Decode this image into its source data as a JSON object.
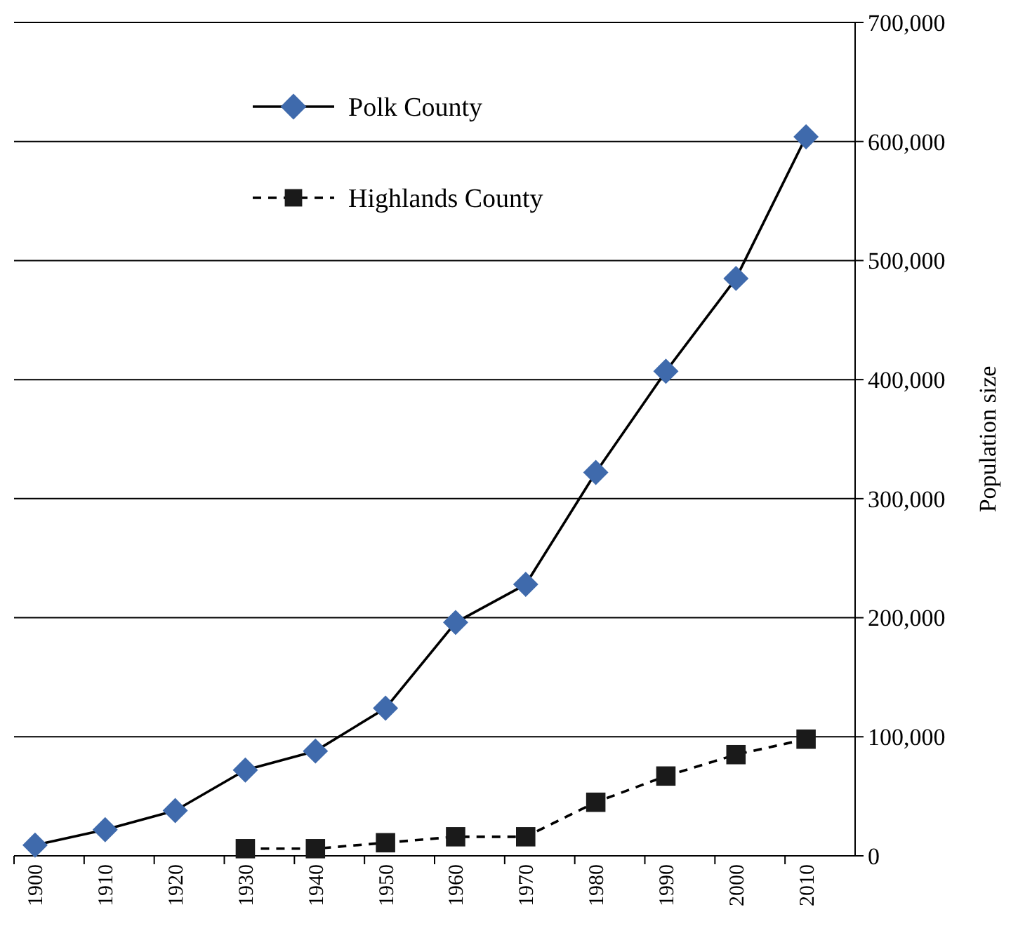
{
  "chart_data": {
    "type": "line",
    "ylabel": "Population size",
    "categories": [
      "1900",
      "1910",
      "1920",
      "1930",
      "1940",
      "1950",
      "1960",
      "1970",
      "1980",
      "1990",
      "2000",
      "2010"
    ],
    "series": [
      {
        "name": "Polk County",
        "color": "#3f6aac",
        "marker": "diamond",
        "line_style": "solid",
        "values": [
          9000,
          22000,
          38000,
          72000,
          88000,
          124000,
          196000,
          228000,
          322000,
          407000,
          485000,
          604000
        ]
      },
      {
        "name": "Highlands County",
        "color": "#1a1a1a",
        "marker": "square",
        "line_style": "dashed",
        "values": [
          null,
          null,
          null,
          6000,
          6000,
          11000,
          16000,
          16000,
          45000,
          67000,
          85000,
          98000
        ]
      }
    ],
    "ylim": [
      0,
      700000
    ],
    "yticks": [
      {
        "value": 0,
        "label": "0"
      },
      {
        "value": 100000,
        "label": "100,000"
      },
      {
        "value": 200000,
        "label": "200,000"
      },
      {
        "value": 300000,
        "label": "300,000"
      },
      {
        "value": 400000,
        "label": "400,000"
      },
      {
        "value": 500000,
        "label": "500,000"
      },
      {
        "value": 600000,
        "label": "600,000"
      },
      {
        "value": 700000,
        "label": "700,000"
      }
    ],
    "grid": "y",
    "legend": "top left"
  }
}
